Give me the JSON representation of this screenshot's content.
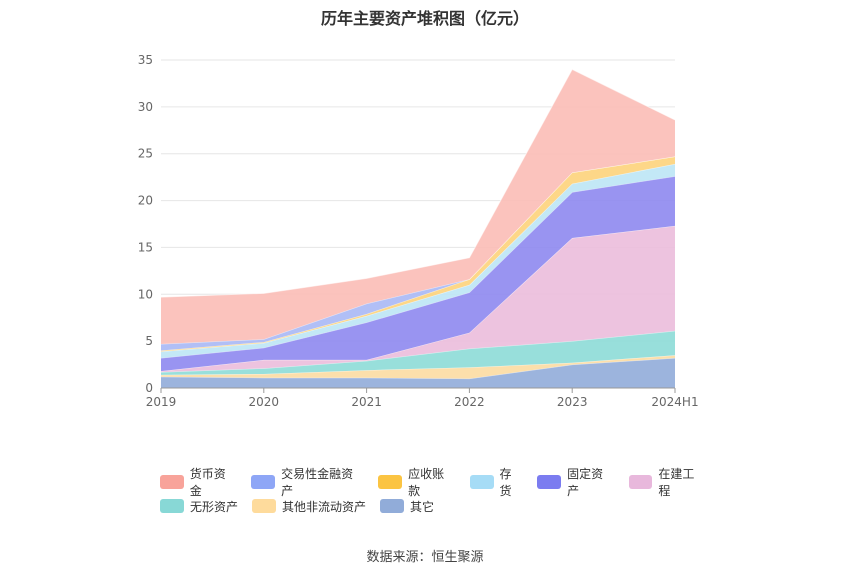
{
  "chart_data": {
    "type": "area",
    "title": "历年主要资产堆积图（亿元）",
    "categories": [
      "2019",
      "2020",
      "2021",
      "2022",
      "2023",
      "2024H1"
    ],
    "ylim": [
      0,
      35
    ],
    "yticks": [
      0,
      5,
      10,
      15,
      20,
      25,
      30,
      35
    ],
    "series": [
      {
        "name": "其它",
        "color": "#91acd9",
        "values": [
          1.2,
          1.1,
          1.1,
          1.0,
          2.5,
          3.2
        ]
      },
      {
        "name": "其他非流动资产",
        "color": "#fcdca2",
        "values": [
          0.2,
          0.4,
          0.8,
          1.2,
          0.2,
          0.3
        ]
      },
      {
        "name": "无形资产",
        "color": "#8ddcd7",
        "values": [
          0.3,
          0.6,
          1.0,
          2.0,
          2.3,
          2.6
        ]
      },
      {
        "name": "在建工程",
        "color": "#ebbcdc",
        "values": [
          0.1,
          0.9,
          0.1,
          1.7,
          11.0,
          11.2
        ]
      },
      {
        "name": "固定资产",
        "color": "#8e88f0",
        "values": [
          1.4,
          1.3,
          4.0,
          4.3,
          4.9,
          5.3
        ]
      },
      {
        "name": "存货",
        "color": "#bde6f5",
        "values": [
          0.7,
          0.5,
          0.7,
          0.8,
          0.9,
          1.3
        ]
      },
      {
        "name": "应收账款",
        "color": "#fdd37b",
        "values": [
          0.1,
          0.1,
          0.2,
          0.6,
          1.2,
          0.8
        ]
      },
      {
        "name": "交易性金融资产",
        "color": "#a8b8f5",
        "values": [
          0.7,
          0.3,
          1.1,
          0.0,
          0.0,
          0.0
        ]
      },
      {
        "name": "货币资金",
        "color": "#fbbdb6",
        "values": [
          5.0,
          4.9,
          2.7,
          2.3,
          11.0,
          3.9
        ]
      }
    ]
  },
  "legend": {
    "row1": [
      {
        "name": "货币资金",
        "color": "#f8a39a"
      },
      {
        "name": "交易性金融资产",
        "color": "#8ea6f6"
      },
      {
        "name": "应收账款",
        "color": "#fbc442"
      },
      {
        "name": "存货",
        "color": "#a6dcf6"
      },
      {
        "name": "固定资产",
        "color": "#7b7cf0"
      },
      {
        "name": "在建工程",
        "color": "#e8b8dc"
      }
    ],
    "row2": [
      {
        "name": "无形资产",
        "color": "#88d8d6"
      },
      {
        "name": "其他非流动资产",
        "color": "#fedb9c"
      },
      {
        "name": "其它",
        "color": "#91acd9"
      }
    ]
  },
  "source": "数据来源：恒生聚源"
}
